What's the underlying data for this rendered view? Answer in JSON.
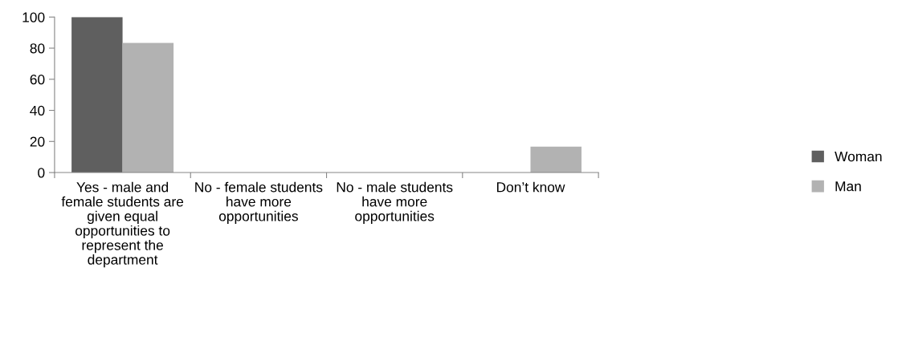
{
  "chart_data": {
    "type": "bar",
    "categories": [
      "Yes - male and female students are given equal opportunities to represent the department",
      "No - female students have more opportunities",
      "No - male students have more opportunities",
      "Don’t know"
    ],
    "series": [
      {
        "name": "Woman",
        "color": "#5f5f5f",
        "values": [
          100,
          0,
          0,
          0
        ]
      },
      {
        "name": "Man",
        "color": "#b2b2b2",
        "values": [
          83.3,
          0,
          0,
          16.7
        ]
      }
    ],
    "ylim": [
      0,
      100
    ],
    "yticks": [
      0,
      20,
      40,
      60,
      80,
      100
    ],
    "grid": false,
    "legend": "right"
  }
}
